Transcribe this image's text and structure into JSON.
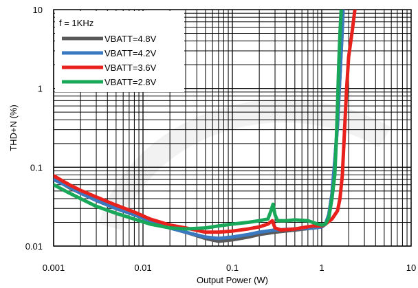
{
  "chart_data": {
    "type": "line",
    "title": "",
    "xlabel": "Output Power (W)",
    "ylabel": "THD+N (%)",
    "x_scale": "log",
    "y_scale": "log",
    "xlim": [
      0.001,
      10
    ],
    "ylim": [
      0.01,
      10
    ],
    "x_ticks": [
      "0.001",
      "0.01",
      "0.1",
      "1",
      "10"
    ],
    "y_ticks": [
      "0.01",
      "0.1",
      "1",
      "10"
    ],
    "grid": true,
    "legend": {
      "placement": "top-left",
      "title": "f = 1KHz"
    },
    "series": [
      {
        "name": "VBATT=4.8V",
        "color": "#595959",
        "points": [
          [
            0.001,
            0.072
          ],
          [
            0.0015,
            0.055
          ],
          [
            0.002,
            0.047
          ],
          [
            0.003,
            0.038
          ],
          [
            0.005,
            0.03
          ],
          [
            0.008,
            0.025
          ],
          [
            0.012,
            0.021
          ],
          [
            0.02,
            0.017
          ],
          [
            0.03,
            0.015
          ],
          [
            0.05,
            0.0125
          ],
          [
            0.07,
            0.0115
          ],
          [
            0.1,
            0.012
          ],
          [
            0.15,
            0.013
          ],
          [
            0.2,
            0.014
          ],
          [
            0.3,
            0.015
          ],
          [
            0.5,
            0.016
          ],
          [
            0.8,
            0.017
          ],
          [
            1.0,
            0.0175
          ],
          [
            1.1,
            0.019
          ],
          [
            1.2,
            0.025
          ],
          [
            1.3,
            0.045
          ],
          [
            1.4,
            0.12
          ],
          [
            1.5,
            0.35
          ],
          [
            1.6,
            1.5
          ],
          [
            1.7,
            6.0
          ],
          [
            1.73,
            10.0
          ]
        ]
      },
      {
        "name": "VBATT=4.2V",
        "color": "#3a78c0",
        "points": [
          [
            0.001,
            0.07
          ],
          [
            0.0015,
            0.056
          ],
          [
            0.002,
            0.047
          ],
          [
            0.003,
            0.038
          ],
          [
            0.005,
            0.03
          ],
          [
            0.008,
            0.025
          ],
          [
            0.012,
            0.021
          ],
          [
            0.02,
            0.017
          ],
          [
            0.03,
            0.015
          ],
          [
            0.05,
            0.013
          ],
          [
            0.07,
            0.0125
          ],
          [
            0.1,
            0.013
          ],
          [
            0.15,
            0.014
          ],
          [
            0.2,
            0.015
          ],
          [
            0.3,
            0.016
          ],
          [
            0.5,
            0.0165
          ],
          [
            0.8,
            0.017
          ],
          [
            1.0,
            0.0175
          ],
          [
            1.1,
            0.019
          ],
          [
            1.2,
            0.025
          ],
          [
            1.3,
            0.045
          ],
          [
            1.4,
            0.12
          ],
          [
            1.5,
            0.35
          ],
          [
            1.6,
            1.5
          ],
          [
            1.7,
            6.0
          ],
          [
            1.73,
            10.0
          ]
        ]
      },
      {
        "name": "VBATT=3.6V",
        "color": "#e8211c",
        "points": [
          [
            0.001,
            0.078
          ],
          [
            0.0015,
            0.06
          ],
          [
            0.002,
            0.051
          ],
          [
            0.003,
            0.042
          ],
          [
            0.005,
            0.033
          ],
          [
            0.008,
            0.027
          ],
          [
            0.012,
            0.022
          ],
          [
            0.02,
            0.0185
          ],
          [
            0.03,
            0.017
          ],
          [
            0.05,
            0.015
          ],
          [
            0.07,
            0.015
          ],
          [
            0.1,
            0.0155
          ],
          [
            0.15,
            0.0165
          ],
          [
            0.2,
            0.0175
          ],
          [
            0.25,
            0.019
          ],
          [
            0.28,
            0.021
          ],
          [
            0.3,
            0.017
          ],
          [
            0.35,
            0.016
          ],
          [
            0.5,
            0.0165
          ],
          [
            0.8,
            0.018
          ],
          [
            1.0,
            0.018
          ],
          [
            1.1,
            0.019
          ],
          [
            1.3,
            0.022
          ],
          [
            1.5,
            0.028
          ],
          [
            1.6,
            0.04
          ],
          [
            1.7,
            0.08
          ],
          [
            1.8,
            0.3
          ],
          [
            1.9,
            1.0
          ],
          [
            2.0,
            2.5
          ],
          [
            2.2,
            5.5
          ],
          [
            2.35,
            10.0
          ]
        ]
      },
      {
        "name": "VBATT=2.8V",
        "color": "#19a85a",
        "points": [
          [
            0.001,
            0.06
          ],
          [
            0.0015,
            0.047
          ],
          [
            0.002,
            0.04
          ],
          [
            0.003,
            0.032
          ],
          [
            0.005,
            0.026
          ],
          [
            0.008,
            0.022
          ],
          [
            0.012,
            0.019
          ],
          [
            0.02,
            0.017
          ],
          [
            0.03,
            0.0165
          ],
          [
            0.05,
            0.017
          ],
          [
            0.07,
            0.018
          ],
          [
            0.1,
            0.019
          ],
          [
            0.15,
            0.02
          ],
          [
            0.2,
            0.021
          ],
          [
            0.25,
            0.022
          ],
          [
            0.27,
            0.028
          ],
          [
            0.285,
            0.034
          ],
          [
            0.3,
            0.025
          ],
          [
            0.32,
            0.021
          ],
          [
            0.4,
            0.021
          ],
          [
            0.5,
            0.0215
          ],
          [
            0.7,
            0.021
          ],
          [
            0.9,
            0.019
          ],
          [
            1.0,
            0.0185
          ],
          [
            1.1,
            0.019
          ],
          [
            1.2,
            0.023
          ],
          [
            1.3,
            0.04
          ],
          [
            1.4,
            0.08
          ],
          [
            1.45,
            0.2
          ],
          [
            1.5,
            0.6
          ],
          [
            1.55,
            2.0
          ],
          [
            1.6,
            5.0
          ],
          [
            1.65,
            10.0
          ]
        ]
      }
    ]
  }
}
